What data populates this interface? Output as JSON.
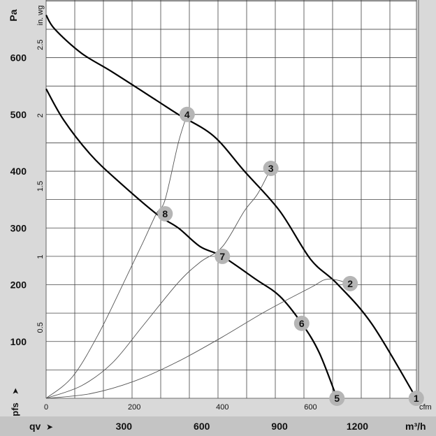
{
  "chart_data": {
    "type": "line",
    "title": "",
    "x_axis": {
      "unit": "cfm",
      "ticks": [
        0,
        200,
        400,
        600
      ],
      "range": [
        0,
        840
      ]
    },
    "x_axis_secondary": {
      "symbol": "qv",
      "arrow": "➤",
      "unit": "m³/h",
      "ticks": [
        300,
        600,
        900,
        1200
      ]
    },
    "y_axis": {
      "unit": "Pa",
      "ticks": [
        100,
        200,
        300,
        400,
        500,
        600
      ],
      "range": [
        0,
        680
      ]
    },
    "y_axis_secondary": {
      "unit": "in. wg",
      "ticks": [
        "0.5",
        "1",
        "1.5",
        "2",
        "2.5"
      ],
      "tick_values": [
        0.5,
        1,
        1.5,
        2,
        2.5
      ]
    },
    "y_symbol": "pfs",
    "y_arrow": "➤",
    "grid": true,
    "series": [
      {
        "name": "",
        "style": "fan-curve",
        "x": [
          0,
          20,
          80,
          150,
          250,
          300,
          380,
          450,
          530,
          600,
          660,
          740,
          840
        ],
        "y": [
          675,
          650,
          608,
          575,
          525,
          500,
          462,
          400,
          330,
          245,
          202,
          130,
          0
        ]
      },
      {
        "name": "",
        "style": "fan-curve",
        "x": [
          0,
          40,
          100,
          160,
          250,
          300,
          350,
          400,
          475,
          530,
          580,
          620,
          660
        ],
        "y": [
          545,
          490,
          430,
          385,
          325,
          300,
          267,
          250,
          210,
          180,
          132,
          80,
          0
        ]
      },
      {
        "name": "",
        "style": "system-curve",
        "x": [
          0,
          100,
          200,
          300,
          400,
          500,
          600,
          640,
          690
        ],
        "y": [
          0,
          8,
          30,
          65,
          108,
          154,
          195,
          210,
          202
        ]
      },
      {
        "name": "",
        "style": "system-curve",
        "x": [
          0,
          80,
          150,
          220,
          300,
          350,
          400,
          450,
          480,
          510
        ],
        "y": [
          0,
          22,
          62,
          128,
          204,
          240,
          267,
          330,
          360,
          405
        ]
      },
      {
        "name": "",
        "style": "system-curve",
        "x": [
          0,
          60,
          120,
          180,
          220,
          250,
          270,
          300,
          320
        ],
        "y": [
          0,
          38,
          115,
          210,
          275,
          325,
          350,
          450,
          500
        ]
      }
    ],
    "markers": [
      {
        "label": "1",
        "x": 840,
        "y": 0
      },
      {
        "label": "2",
        "x": 690,
        "y": 202
      },
      {
        "label": "3",
        "x": 510,
        "y": 405
      },
      {
        "label": "4",
        "x": 320,
        "y": 500
      },
      {
        "label": "5",
        "x": 660,
        "y": 0
      },
      {
        "label": "6",
        "x": 580,
        "y": 132
      },
      {
        "label": "7",
        "x": 400,
        "y": 250
      },
      {
        "label": "8",
        "x": 270,
        "y": 325
      }
    ]
  }
}
